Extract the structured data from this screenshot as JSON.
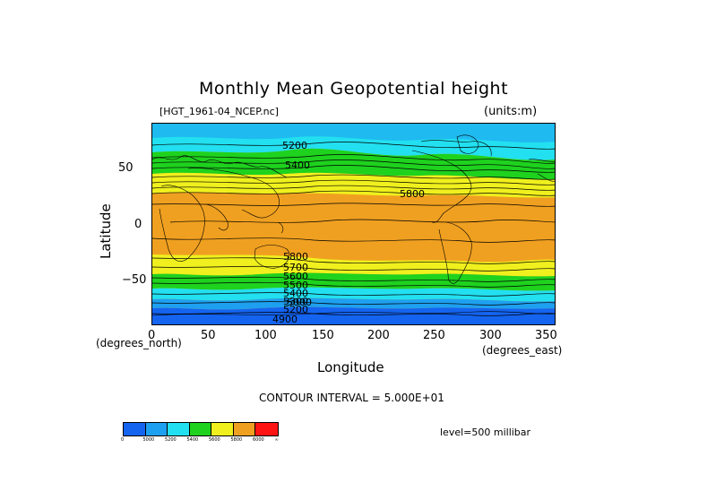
{
  "title": "Monthly Mean Geopotential height",
  "file_label": "[HGT_1961-04_NCEP.nc]",
  "units_label": "(units:m)",
  "x_axis": {
    "label": "Longitude",
    "units": "(degrees_east)",
    "ticks": [
      "0",
      "50",
      "100",
      "150",
      "200",
      "250",
      "300",
      "350"
    ]
  },
  "y_axis": {
    "label": "Latitude",
    "units": "(degrees_north)",
    "ticks": [
      "50",
      "0",
      "−50"
    ]
  },
  "contour_interval": "CONTOUR INTERVAL = 5.000E+01",
  "level": "level=500 millibar",
  "contour_labels": [
    "5200",
    "5400",
    "5800",
    "5800",
    "5700",
    "5600",
    "5500",
    "5400",
    "5300",
    "5200",
    "5000",
    "4900"
  ],
  "colorbar": {
    "labels": [
      "0",
      "5000",
      "5200",
      "5400",
      "5600",
      "5800",
      "6000",
      "∞"
    ],
    "colors": [
      "#1464f0",
      "#1ea0f0",
      "#22e0f0",
      "#1ed21e",
      "#f0f01e",
      "#f0a020",
      "#ff1414"
    ]
  },
  "band_colors": {
    "polar_low": "#1464f0",
    "low": "#1ea0f0",
    "mid_low": "#22e0f0",
    "mid": "#1ed21e",
    "mid_high": "#f0f01e",
    "high": "#f0a020"
  }
}
